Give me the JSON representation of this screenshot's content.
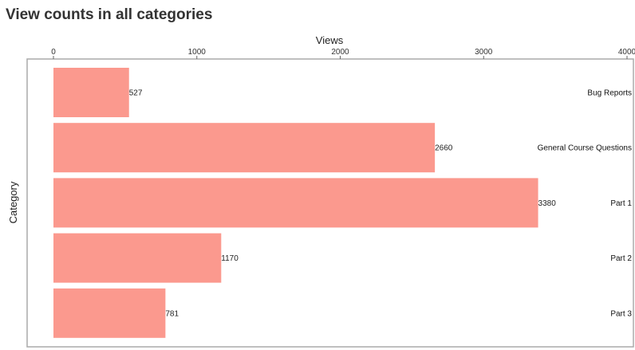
{
  "page": {
    "title": "View counts in all categories"
  },
  "chart_data": {
    "type": "bar",
    "orientation": "horizontal",
    "title": "View counts in all categories",
    "xlabel": "Views",
    "ylabel": "Category",
    "xlim": [
      0,
      4000
    ],
    "x_ticks": [
      0,
      1000,
      2000,
      3000,
      4000
    ],
    "x_tick_labels": [
      "0",
      "1000",
      "2000",
      "3000",
      "4000"
    ],
    "x_axis_position": "top",
    "category_label_position": "right",
    "grid": false,
    "categories": [
      "Bug Reports",
      "General Course Questions",
      "Part 1",
      "Part 2",
      "Part 3"
    ],
    "values": [
      527,
      2660,
      3380,
      1170,
      781
    ],
    "value_labels": [
      "527",
      "2660",
      "3380",
      "1170",
      "781"
    ],
    "bar_color": "#fb998e",
    "frame_color": "#aaaaaa"
  }
}
